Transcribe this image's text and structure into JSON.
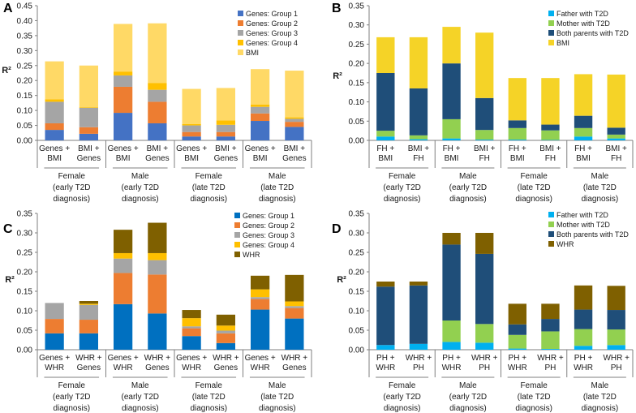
{
  "chart_data": [
    {
      "panel": "A",
      "type": "bar",
      "stacked": true,
      "ylabel": "R²",
      "ylim": [
        0,
        0.45
      ],
      "yticks": [
        "0.00",
        "0.05",
        "0.10",
        "0.15",
        "0.20",
        "0.25",
        "0.30",
        "0.35",
        "0.40",
        "0.45"
      ],
      "categories": [
        [
          "Genes +",
          "BMI"
        ],
        [
          "BMI +",
          "Genes"
        ],
        [
          "Genes +",
          "BMI"
        ],
        [
          "BMI +",
          "Genes"
        ],
        [
          "Genes +",
          "BMI"
        ],
        [
          "BMI +",
          "Genes"
        ],
        [
          "Genes +",
          "BMI"
        ],
        [
          "BMI +",
          "Genes"
        ]
      ],
      "groups": [
        [
          "Female",
          "(early T2D",
          "diagnosis)"
        ],
        [
          "Male",
          "(early T2D",
          "diagnosis)"
        ],
        [
          "Female",
          "(late T2D",
          "diagnosis)"
        ],
        [
          "Male",
          "(late T2D",
          "diagnosis)"
        ]
      ],
      "legend": "top-right",
      "series": [
        {
          "name": "Genes: Group 1",
          "color": "#4472C4",
          "values": [
            0.035,
            0.022,
            0.092,
            0.057,
            0.013,
            0.013,
            0.065,
            0.045
          ]
        },
        {
          "name": "Genes: Group 2",
          "color": "#ED7D31",
          "values": [
            0.022,
            0.022,
            0.087,
            0.072,
            0.015,
            0.015,
            0.025,
            0.017
          ]
        },
        {
          "name": "Genes: Group 3",
          "color": "#A5A5A5",
          "values": [
            0.072,
            0.065,
            0.038,
            0.04,
            0.022,
            0.024,
            0.022,
            0.01
          ]
        },
        {
          "name": "Genes: Group 4",
          "color": "#FFC000",
          "values": [
            0.008,
            0.002,
            0.013,
            0.023,
            0.005,
            0.015,
            0.008,
            0.005
          ]
        },
        {
          "name": "BMI",
          "color": "#FFD966",
          "values": [
            0.127,
            0.139,
            0.159,
            0.199,
            0.117,
            0.108,
            0.118,
            0.156
          ]
        }
      ]
    },
    {
      "panel": "B",
      "type": "bar",
      "stacked": true,
      "ylabel": "R²",
      "ylim": [
        0,
        0.35
      ],
      "yticks": [
        "0.00",
        "0.05",
        "0.10",
        "0.15",
        "0.20",
        "0.25",
        "0.30",
        "0.35"
      ],
      "categories": [
        [
          "FH +",
          "BMI"
        ],
        [
          "BMI +",
          "FH"
        ],
        [
          "FH +",
          "BMI"
        ],
        [
          "BMI +",
          "FH"
        ],
        [
          "FH +",
          "BMI"
        ],
        [
          "BMI +",
          "FH"
        ],
        [
          "FH +",
          "BMI"
        ],
        [
          "BMI +",
          "FH"
        ]
      ],
      "groups": [
        [
          "Female",
          "(early T2D",
          "diagnosis)"
        ],
        [
          "Male",
          "(early T2D",
          "diagnosis)"
        ],
        [
          "Female",
          "(late T2D",
          "diagnosis)"
        ],
        [
          "Male",
          "(late T2D",
          "diagnosis)"
        ]
      ],
      "legend": "top-right",
      "series": [
        {
          "name": "Father with T2D",
          "color": "#00B0F0",
          "values": [
            0.01,
            0.003,
            0.005,
            0.002,
            0.002,
            0.001,
            0.01,
            0.005
          ]
        },
        {
          "name": "Mother with T2D",
          "color": "#92D050",
          "values": [
            0.015,
            0.01,
            0.05,
            0.025,
            0.03,
            0.025,
            0.022,
            0.01
          ]
        },
        {
          "name": "Both parents with T2D",
          "color": "#1F4E79",
          "values": [
            0.15,
            0.122,
            0.145,
            0.083,
            0.02,
            0.015,
            0.032,
            0.018
          ]
        },
        {
          "name": "BMI",
          "color": "#F5D327",
          "values": [
            0.093,
            0.133,
            0.095,
            0.17,
            0.11,
            0.121,
            0.108,
            0.138
          ]
        }
      ]
    },
    {
      "panel": "C",
      "type": "bar",
      "stacked": true,
      "ylabel": "R²",
      "ylim": [
        0,
        0.35
      ],
      "yticks": [
        "0.00",
        "0.05",
        "0.10",
        "0.15",
        "0.20",
        "0.25",
        "0.30",
        "0.35"
      ],
      "categories": [
        [
          "Genes +",
          "WHR"
        ],
        [
          "WHR +",
          "Genes"
        ],
        [
          "Genes +",
          "WHR"
        ],
        [
          "WHR +",
          "Genes"
        ],
        [
          "Genes +",
          "WHR"
        ],
        [
          "WHR +",
          "Genes"
        ],
        [
          "Genes +",
          "WHR"
        ],
        [
          "WHR +",
          "Genes"
        ]
      ],
      "groups": [
        [
          "Female",
          "(early T2D",
          "diagnosis)"
        ],
        [
          "Male",
          "(early T2D",
          "diagnosis)"
        ],
        [
          "Female",
          "(late T2D",
          "diagnosis)"
        ],
        [
          "Male",
          "(late T2D",
          "diagnosis)"
        ]
      ],
      "legend": "top-right",
      "series": [
        {
          "name": "Genes: Group 1",
          "color": "#0070C0",
          "values": [
            0.042,
            0.042,
            0.117,
            0.093,
            0.035,
            0.017,
            0.103,
            0.08
          ]
        },
        {
          "name": "Genes: Group 2",
          "color": "#ED7D31",
          "values": [
            0.037,
            0.035,
            0.08,
            0.1,
            0.02,
            0.025,
            0.027,
            0.027
          ]
        },
        {
          "name": "Genes: Group 3",
          "color": "#A5A5A5",
          "values": [
            0.041,
            0.038,
            0.037,
            0.037,
            0.005,
            0.007,
            0.005,
            0.005
          ]
        },
        {
          "name": "Genes: Group 4",
          "color": "#FFC000",
          "values": [
            0.0,
            0.003,
            0.014,
            0.018,
            0.021,
            0.013,
            0.02,
            0.012
          ]
        },
        {
          "name": "WHR",
          "color": "#7F6000",
          "values": [
            0.0,
            0.007,
            0.06,
            0.078,
            0.021,
            0.028,
            0.035,
            0.068
          ]
        }
      ]
    },
    {
      "panel": "D",
      "type": "bar",
      "stacked": true,
      "ylabel": "R²",
      "ylim": [
        0,
        0.35
      ],
      "yticks": [
        "0.00",
        "0.05",
        "0.10",
        "0.15",
        "0.20",
        "0.25",
        "0.30",
        "0.35"
      ],
      "categories": [
        [
          "PH +",
          "WHR"
        ],
        [
          "WHR +",
          "PH"
        ],
        [
          "PH +",
          "WHR"
        ],
        [
          "WHR +",
          "PH"
        ],
        [
          "PH +",
          "WHR"
        ],
        [
          "WHR +",
          "PH"
        ],
        [
          "PH +",
          "WHR"
        ],
        [
          "WHR +",
          "PH"
        ]
      ],
      "groups": [
        [
          "Female",
          "(early T2D",
          "diagnosis)"
        ],
        [
          "Male",
          "(early T2D",
          "diagnosis)"
        ],
        [
          "Female",
          "(late T2D",
          "diagnosis)"
        ],
        [
          "Male",
          "(late T2D",
          "diagnosis)"
        ]
      ],
      "legend": "top-right",
      "series": [
        {
          "name": "Father with T2D",
          "color": "#00B0F0",
          "values": [
            0.012,
            0.015,
            0.02,
            0.018,
            0.003,
            0.002,
            0.01,
            0.012
          ]
        },
        {
          "name": "Mother with T2D",
          "color": "#92D050",
          "values": [
            0.0,
            0.0,
            0.055,
            0.048,
            0.035,
            0.045,
            0.043,
            0.04
          ]
        },
        {
          "name": "Both parents with T2D",
          "color": "#1F4E79",
          "values": [
            0.15,
            0.15,
            0.195,
            0.18,
            0.027,
            0.032,
            0.05,
            0.05
          ]
        },
        {
          "name": "WHR",
          "color": "#7F6000",
          "values": [
            0.013,
            0.01,
            0.03,
            0.054,
            0.053,
            0.039,
            0.062,
            0.062
          ]
        }
      ]
    }
  ]
}
